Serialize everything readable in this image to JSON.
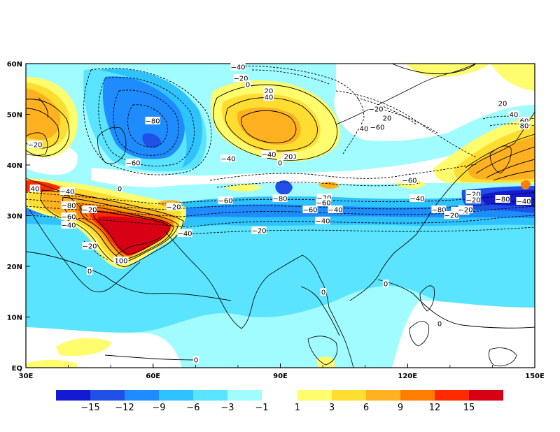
{
  "map": {
    "x_ticks": [
      "30E",
      "60E",
      "90E",
      "120E",
      "150E"
    ],
    "y_ticks": [
      "EQ",
      "10N",
      "20N",
      "30N",
      "40N",
      "50N",
      "60N"
    ],
    "contour_labels": [
      "-40",
      "-20",
      "0",
      "20",
      "40",
      "-80",
      "-60",
      "-40",
      "0",
      "-20",
      "-20",
      "20",
      "40",
      "-60",
      "-40",
      "-20",
      "0",
      "20",
      "40",
      "-80",
      "-60",
      "-40",
      "-20",
      "100",
      "-20",
      "0",
      "-40",
      "-20",
      "-60",
      "-20",
      "-80",
      "-60",
      "-40",
      "-20",
      "-60",
      "-40",
      "-80",
      "-60",
      "-40",
      "-20",
      "-80",
      "-40",
      "20",
      "40",
      "60",
      "80",
      "-20",
      "-40",
      "0",
      "0",
      "0",
      "0",
      "-40",
      "-20",
      "-60",
      "-20"
    ]
  },
  "colorbar": {
    "neg_labels": [
      "−15",
      "−12",
      "−9",
      "−6",
      "−3",
      "−1"
    ],
    "pos_labels": [
      "1",
      "3",
      "6",
      "9",
      "12",
      "15"
    ],
    "neg_colors": [
      "#1419d2",
      "#2050e6",
      "#1e8cff",
      "#2ec2ff",
      "#5ae4ff",
      "#a0fcff"
    ],
    "pos_colors": [
      "#fffc6e",
      "#ffdd31",
      "#ffb11f",
      "#ff7e00",
      "#ff2a00",
      "#d70015"
    ]
  },
  "colors": {
    "background": "#ffffff",
    "light_cyan": "#a0fcff",
    "cyan": "#5ae4ff",
    "sky": "#2ec2ff",
    "blue": "#1e8cff",
    "deep_blue": "#2050e6",
    "navy": "#1419d2",
    "yellow": "#fffc6e",
    "gold": "#ffdd31",
    "orange": "#ffb11f",
    "dark_orange": "#ff7e00",
    "red": "#ff2a00",
    "dark_red": "#d70015"
  }
}
